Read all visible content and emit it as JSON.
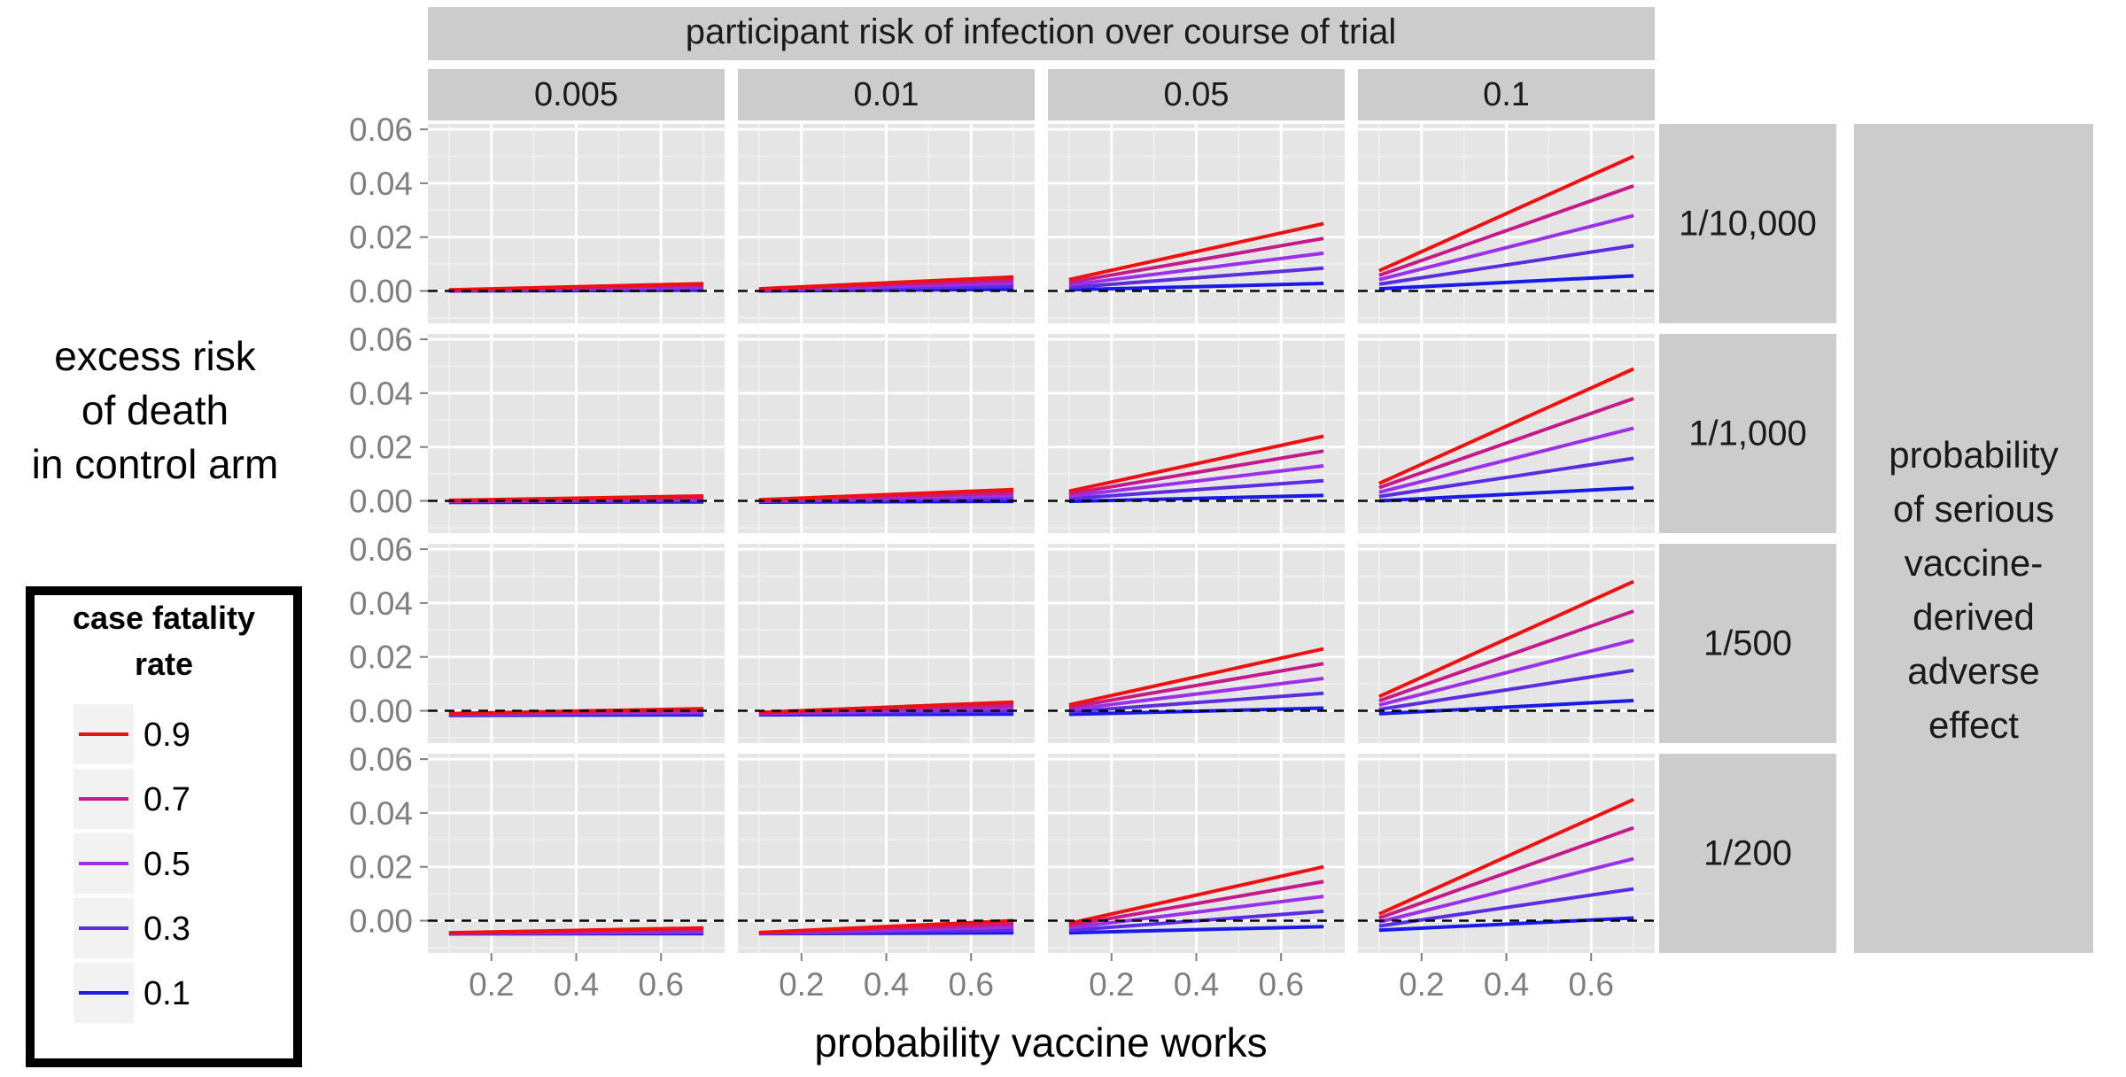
{
  "chart_data": {
    "type": "line",
    "facet_columns_title": "participant risk of infection over course of trial",
    "facet_rows_title": "probability of serious vaccine-derived adverse effect",
    "facet_rows_title_lines": [
      "probability",
      "of serious",
      "vaccine-",
      "derived",
      "adverse",
      "effect"
    ],
    "column_labels": [
      "0.005",
      "0.01",
      "0.05",
      "0.1"
    ],
    "row_labels": [
      "1/10,000",
      "1/1,000",
      "1/500",
      "1/200"
    ],
    "xlabel": "probability vaccine works",
    "ylabel": "excess risk of death in control arm",
    "ylabel_lines": [
      "excess risk",
      "of death",
      "in control arm"
    ],
    "x_ticks": [
      "0.2",
      "0.4",
      "0.6"
    ],
    "y_ticks": [
      "0.00",
      "0.02",
      "0.04",
      "0.06"
    ],
    "xlim": [
      0.05,
      0.75
    ],
    "ylim": [
      -0.012,
      0.062
    ],
    "reference_line": {
      "y": 0,
      "style": "dashed"
    },
    "legend": {
      "title": "case fatality rate",
      "title_lines": [
        "case fatality",
        "rate"
      ],
      "entries": [
        "0.9",
        "0.7",
        "0.5",
        "0.3",
        "0.1"
      ],
      "colors": [
        "#ee1111",
        "#c41a8a",
        "#9b30e8",
        "#5a2de0",
        "#1a1ae6"
      ]
    },
    "panels": [
      {
        "row": 0,
        "col": 0,
        "series": [
          {
            "cfr": 0.9,
            "x": [
              0.1,
              0.7
            ],
            "y": [
              0.0004,
              0.0027
            ]
          },
          {
            "cfr": 0.7,
            "x": [
              0.1,
              0.7
            ],
            "y": [
              0.0003,
              0.0021
            ]
          },
          {
            "cfr": 0.5,
            "x": [
              0.1,
              0.7
            ],
            "y": [
              0.0002,
              0.0015
            ]
          },
          {
            "cfr": 0.3,
            "x": [
              0.1,
              0.7
            ],
            "y": [
              0.0001,
              0.0009
            ]
          },
          {
            "cfr": 0.1,
            "x": [
              0.1,
              0.7
            ],
            "y": [
              0.0,
              0.0003
            ]
          }
        ]
      },
      {
        "row": 0,
        "col": 1,
        "series": [
          {
            "cfr": 0.9,
            "x": [
              0.1,
              0.7
            ],
            "y": [
              0.0008,
              0.0052
            ]
          },
          {
            "cfr": 0.7,
            "x": [
              0.1,
              0.7
            ],
            "y": [
              0.0006,
              0.004
            ]
          },
          {
            "cfr": 0.5,
            "x": [
              0.1,
              0.7
            ],
            "y": [
              0.0004,
              0.0029
            ]
          },
          {
            "cfr": 0.3,
            "x": [
              0.1,
              0.7
            ],
            "y": [
              0.0002,
              0.0017
            ]
          },
          {
            "cfr": 0.1,
            "x": [
              0.1,
              0.7
            ],
            "y": [
              0.0,
              0.0006
            ]
          }
        ]
      },
      {
        "row": 0,
        "col": 2,
        "series": [
          {
            "cfr": 0.9,
            "x": [
              0.1,
              0.7
            ],
            "y": [
              0.0042,
              0.025
            ]
          },
          {
            "cfr": 0.7,
            "x": [
              0.1,
              0.7
            ],
            "y": [
              0.0032,
              0.0195
            ]
          },
          {
            "cfr": 0.5,
            "x": [
              0.1,
              0.7
            ],
            "y": [
              0.0022,
              0.014
            ]
          },
          {
            "cfr": 0.3,
            "x": [
              0.1,
              0.7
            ],
            "y": [
              0.0013,
              0.0085
            ]
          },
          {
            "cfr": 0.1,
            "x": [
              0.1,
              0.7
            ],
            "y": [
              0.0004,
              0.0028
            ]
          }
        ]
      },
      {
        "row": 0,
        "col": 3,
        "series": [
          {
            "cfr": 0.9,
            "x": [
              0.1,
              0.7
            ],
            "y": [
              0.0075,
              0.05
            ]
          },
          {
            "cfr": 0.7,
            "x": [
              0.1,
              0.7
            ],
            "y": [
              0.0058,
              0.039
            ]
          },
          {
            "cfr": 0.5,
            "x": [
              0.1,
              0.7
            ],
            "y": [
              0.0042,
              0.028
            ]
          },
          {
            "cfr": 0.3,
            "x": [
              0.1,
              0.7
            ],
            "y": [
              0.0025,
              0.0168
            ]
          },
          {
            "cfr": 0.1,
            "x": [
              0.1,
              0.7
            ],
            "y": [
              0.0008,
              0.0056
            ]
          }
        ]
      },
      {
        "row": 1,
        "col": 0,
        "series": [
          {
            "cfr": 0.9,
            "x": [
              0.1,
              0.7
            ],
            "y": [
              0.0002,
              0.0018
            ]
          },
          {
            "cfr": 0.7,
            "x": [
              0.1,
              0.7
            ],
            "y": [
              0.0,
              0.0012
            ]
          },
          {
            "cfr": 0.5,
            "x": [
              0.1,
              0.7
            ],
            "y": [
              -0.0002,
              0.0006
            ]
          },
          {
            "cfr": 0.3,
            "x": [
              0.1,
              0.7
            ],
            "y": [
              -0.0004,
              0.0001
            ]
          },
          {
            "cfr": 0.1,
            "x": [
              0.1,
              0.7
            ],
            "y": [
              -0.0006,
              -0.0004
            ]
          }
        ]
      },
      {
        "row": 1,
        "col": 1,
        "series": [
          {
            "cfr": 0.9,
            "x": [
              0.1,
              0.7
            ],
            "y": [
              0.0004,
              0.0042
            ]
          },
          {
            "cfr": 0.7,
            "x": [
              0.1,
              0.7
            ],
            "y": [
              0.0002,
              0.003
            ]
          },
          {
            "cfr": 0.5,
            "x": [
              0.1,
              0.7
            ],
            "y": [
              0.0,
              0.0019
            ]
          },
          {
            "cfr": 0.3,
            "x": [
              0.1,
              0.7
            ],
            "y": [
              -0.0002,
              0.0008
            ]
          },
          {
            "cfr": 0.1,
            "x": [
              0.1,
              0.7
            ],
            "y": [
              -0.0005,
              -0.0002
            ]
          }
        ]
      },
      {
        "row": 1,
        "col": 2,
        "series": [
          {
            "cfr": 0.9,
            "x": [
              0.1,
              0.7
            ],
            "y": [
              0.0036,
              0.024
            ]
          },
          {
            "cfr": 0.7,
            "x": [
              0.1,
              0.7
            ],
            "y": [
              0.0026,
              0.0185
            ]
          },
          {
            "cfr": 0.5,
            "x": [
              0.1,
              0.7
            ],
            "y": [
              0.0017,
              0.013
            ]
          },
          {
            "cfr": 0.3,
            "x": [
              0.1,
              0.7
            ],
            "y": [
              0.0008,
              0.0075
            ]
          },
          {
            "cfr": 0.1,
            "x": [
              0.1,
              0.7
            ],
            "y": [
              -0.0002,
              0.002
            ]
          }
        ]
      },
      {
        "row": 1,
        "col": 3,
        "series": [
          {
            "cfr": 0.9,
            "x": [
              0.1,
              0.7
            ],
            "y": [
              0.0065,
              0.049
            ]
          },
          {
            "cfr": 0.7,
            "x": [
              0.1,
              0.7
            ],
            "y": [
              0.0049,
              0.038
            ]
          },
          {
            "cfr": 0.5,
            "x": [
              0.1,
              0.7
            ],
            "y": [
              0.0032,
              0.027
            ]
          },
          {
            "cfr": 0.3,
            "x": [
              0.1,
              0.7
            ],
            "y": [
              0.0016,
              0.0158
            ]
          },
          {
            "cfr": 0.1,
            "x": [
              0.1,
              0.7
            ],
            "y": [
              0.0,
              0.0048
            ]
          }
        ]
      },
      {
        "row": 2,
        "col": 0,
        "series": [
          {
            "cfr": 0.9,
            "x": [
              0.1,
              0.7
            ],
            "y": [
              -0.001,
              0.0008
            ]
          },
          {
            "cfr": 0.7,
            "x": [
              0.1,
              0.7
            ],
            "y": [
              -0.0011,
              0.0002
            ]
          },
          {
            "cfr": 0.5,
            "x": [
              0.1,
              0.7
            ],
            "y": [
              -0.0013,
              -0.0004
            ]
          },
          {
            "cfr": 0.3,
            "x": [
              0.1,
              0.7
            ],
            "y": [
              -0.0015,
              -0.0009
            ]
          },
          {
            "cfr": 0.1,
            "x": [
              0.1,
              0.7
            ],
            "y": [
              -0.0017,
              -0.0015
            ]
          }
        ]
      },
      {
        "row": 2,
        "col": 1,
        "series": [
          {
            "cfr": 0.9,
            "x": [
              0.1,
              0.7
            ],
            "y": [
              -0.0006,
              0.0032
            ]
          },
          {
            "cfr": 0.7,
            "x": [
              0.1,
              0.7
            ],
            "y": [
              -0.0008,
              0.002
            ]
          },
          {
            "cfr": 0.5,
            "x": [
              0.1,
              0.7
            ],
            "y": [
              -0.001,
              0.0009
            ]
          },
          {
            "cfr": 0.3,
            "x": [
              0.1,
              0.7
            ],
            "y": [
              -0.0012,
              -0.0002
            ]
          },
          {
            "cfr": 0.1,
            "x": [
              0.1,
              0.7
            ],
            "y": [
              -0.0015,
              -0.0012
            ]
          }
        ]
      },
      {
        "row": 2,
        "col": 2,
        "series": [
          {
            "cfr": 0.9,
            "x": [
              0.1,
              0.7
            ],
            "y": [
              0.0022,
              0.023
            ]
          },
          {
            "cfr": 0.7,
            "x": [
              0.1,
              0.7
            ],
            "y": [
              0.0013,
              0.0175
            ]
          },
          {
            "cfr": 0.5,
            "x": [
              0.1,
              0.7
            ],
            "y": [
              0.0004,
              0.012
            ]
          },
          {
            "cfr": 0.3,
            "x": [
              0.1,
              0.7
            ],
            "y": [
              -0.0004,
              0.0065
            ]
          },
          {
            "cfr": 0.1,
            "x": [
              0.1,
              0.7
            ],
            "y": [
              -0.0013,
              0.001
            ]
          }
        ]
      },
      {
        "row": 2,
        "col": 3,
        "series": [
          {
            "cfr": 0.9,
            "x": [
              0.1,
              0.7
            ],
            "y": [
              0.0053,
              0.048
            ]
          },
          {
            "cfr": 0.7,
            "x": [
              0.1,
              0.7
            ],
            "y": [
              0.0037,
              0.037
            ]
          },
          {
            "cfr": 0.5,
            "x": [
              0.1,
              0.7
            ],
            "y": [
              0.0021,
              0.0262
            ]
          },
          {
            "cfr": 0.3,
            "x": [
              0.1,
              0.7
            ],
            "y": [
              0.0005,
              0.015
            ]
          },
          {
            "cfr": 0.1,
            "x": [
              0.1,
              0.7
            ],
            "y": [
              -0.0011,
              0.0038
            ]
          }
        ]
      },
      {
        "row": 3,
        "col": 0,
        "series": [
          {
            "cfr": 0.9,
            "x": [
              0.1,
              0.7
            ],
            "y": [
              -0.0045,
              -0.0027
            ]
          },
          {
            "cfr": 0.7,
            "x": [
              0.1,
              0.7
            ],
            "y": [
              -0.0046,
              -0.0033
            ]
          },
          {
            "cfr": 0.5,
            "x": [
              0.1,
              0.7
            ],
            "y": [
              -0.0047,
              -0.0039
            ]
          },
          {
            "cfr": 0.3,
            "x": [
              0.1,
              0.7
            ],
            "y": [
              -0.0048,
              -0.0044
            ]
          },
          {
            "cfr": 0.1,
            "x": [
              0.1,
              0.7
            ],
            "y": [
              -0.0049,
              -0.0048
            ]
          }
        ]
      },
      {
        "row": 3,
        "col": 1,
        "series": [
          {
            "cfr": 0.9,
            "x": [
              0.1,
              0.7
            ],
            "y": [
              -0.0044,
              0.0
            ]
          },
          {
            "cfr": 0.7,
            "x": [
              0.1,
              0.7
            ],
            "y": [
              -0.0045,
              -0.0013
            ]
          },
          {
            "cfr": 0.5,
            "x": [
              0.1,
              0.7
            ],
            "y": [
              -0.0046,
              -0.0024
            ]
          },
          {
            "cfr": 0.3,
            "x": [
              0.1,
              0.7
            ],
            "y": [
              -0.0047,
              -0.0035
            ]
          },
          {
            "cfr": 0.1,
            "x": [
              0.1,
              0.7
            ],
            "y": [
              -0.0048,
              -0.0045
            ]
          }
        ]
      },
      {
        "row": 3,
        "col": 2,
        "series": [
          {
            "cfr": 0.9,
            "x": [
              0.1,
              0.7
            ],
            "y": [
              -0.001,
              0.02
            ]
          },
          {
            "cfr": 0.7,
            "x": [
              0.1,
              0.7
            ],
            "y": [
              -0.0018,
              0.0145
            ]
          },
          {
            "cfr": 0.5,
            "x": [
              0.1,
              0.7
            ],
            "y": [
              -0.0027,
              0.009
            ]
          },
          {
            "cfr": 0.3,
            "x": [
              0.1,
              0.7
            ],
            "y": [
              -0.0036,
              0.0035
            ]
          },
          {
            "cfr": 0.1,
            "x": [
              0.1,
              0.7
            ],
            "y": [
              -0.0045,
              -0.0022
            ]
          }
        ]
      },
      {
        "row": 3,
        "col": 3,
        "series": [
          {
            "cfr": 0.9,
            "x": [
              0.1,
              0.7
            ],
            "y": [
              0.0025,
              0.045
            ]
          },
          {
            "cfr": 0.7,
            "x": [
              0.1,
              0.7
            ],
            "y": [
              0.001,
              0.0345
            ]
          },
          {
            "cfr": 0.5,
            "x": [
              0.1,
              0.7
            ],
            "y": [
              -0.0005,
              0.023
            ]
          },
          {
            "cfr": 0.3,
            "x": [
              0.1,
              0.7
            ],
            "y": [
              -0.002,
              0.0118
            ]
          },
          {
            "cfr": 0.1,
            "x": [
              0.1,
              0.7
            ],
            "y": [
              -0.0035,
              0.001
            ]
          }
        ]
      }
    ]
  }
}
